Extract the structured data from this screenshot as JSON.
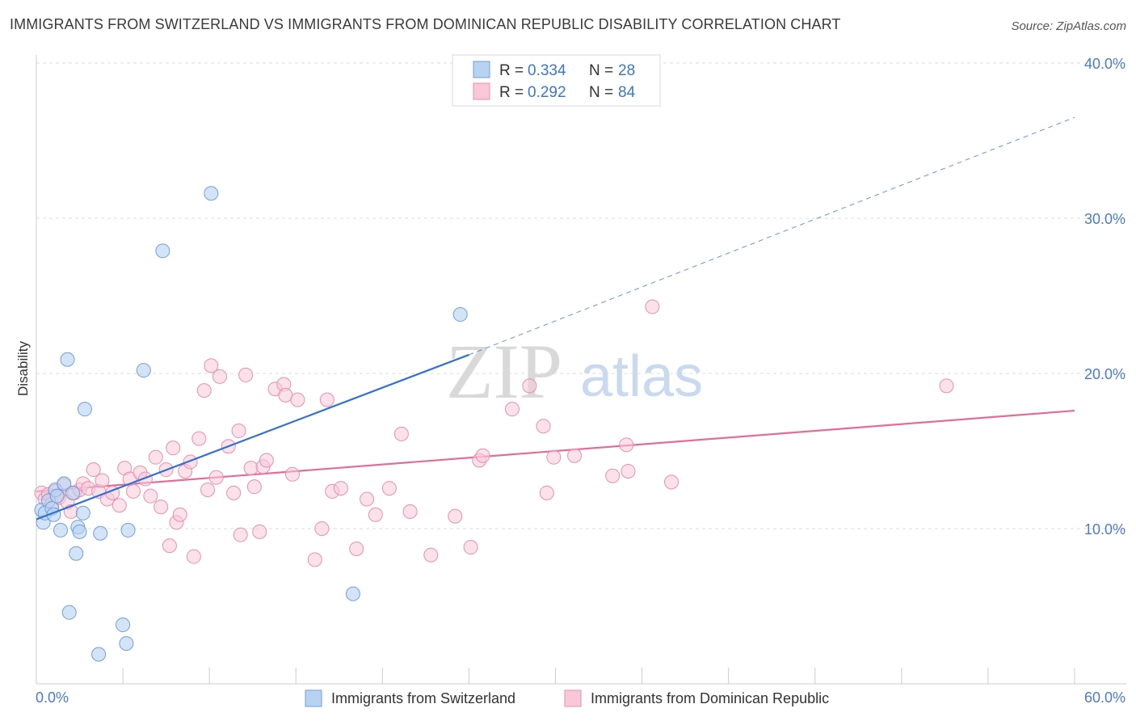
{
  "title": "IMMIGRANTS FROM SWITZERLAND VS IMMIGRANTS FROM DOMINICAN REPUBLIC DISABILITY CORRELATION CHART",
  "source": "Source: ZipAtlas.com",
  "watermark": {
    "zip": "ZIP",
    "atlas": "atlas"
  },
  "colors": {
    "blue_fill": "#b8d2f2",
    "blue_stroke": "#6f9fdc",
    "blue_line": "#2f72cf",
    "pink_fill": "#f8c8d8",
    "pink_stroke": "#e88fae",
    "pink_line": "#e36d97",
    "tick_text": "#4a7cc9",
    "grid": "#dddddd"
  },
  "legend": {
    "items": [
      {
        "r_label": "R =",
        "r_value": "0.334",
        "n_label": "N =",
        "n_value": "28",
        "color": "blue"
      },
      {
        "r_label": "R =",
        "r_value": "0.292",
        "n_label": "N =",
        "n_value": "84",
        "color": "pink"
      }
    ]
  },
  "bottom_legend": [
    {
      "label": "Immigrants from Switzerland",
      "color": "blue"
    },
    {
      "label": "Immigrants from Dominican Republic",
      "color": "pink"
    }
  ],
  "chart_data": {
    "type": "scatter",
    "title": "IMMIGRANTS FROM SWITZERLAND VS IMMIGRANTS FROM DOMINICAN REPUBLIC DISABILITY CORRELATION CHART",
    "xlabel": "",
    "ylabel": "Disability",
    "xlim": [
      0,
      60
    ],
    "ylim": [
      0,
      40
    ],
    "x_tick_labels": [
      "0.0%",
      "60.0%"
    ],
    "y_ticks": [
      10,
      20,
      30,
      40
    ],
    "y_tick_labels": [
      "10.0%",
      "20.0%",
      "30.0%",
      "40.0%"
    ],
    "grid": true,
    "legend_position": "top-center",
    "series": [
      {
        "name": "Immigrants from Switzerland",
        "color": "blue",
        "R": 0.334,
        "N": 28,
        "trend": {
          "x": [
            0,
            25
          ],
          "y": [
            10.6,
            21.2
          ],
          "dashed_to": [
            60,
            36.5
          ]
        },
        "points": [
          [
            0.3,
            11.2
          ],
          [
            0.4,
            10.4
          ],
          [
            0.5,
            11.0
          ],
          [
            0.7,
            11.8
          ],
          [
            0.9,
            11.3
          ],
          [
            1.0,
            10.9
          ],
          [
            1.1,
            12.5
          ],
          [
            1.2,
            12.1
          ],
          [
            1.4,
            9.9
          ],
          [
            1.6,
            12.9
          ],
          [
            1.8,
            20.9
          ],
          [
            1.9,
            4.6
          ],
          [
            2.1,
            12.3
          ],
          [
            2.3,
            8.4
          ],
          [
            2.4,
            10.1
          ],
          [
            2.5,
            9.8
          ],
          [
            2.7,
            11.0
          ],
          [
            2.8,
            17.7
          ],
          [
            3.6,
            1.9
          ],
          [
            3.7,
            9.7
          ],
          [
            5.0,
            3.8
          ],
          [
            5.2,
            2.6
          ],
          [
            5.3,
            9.9
          ],
          [
            6.2,
            20.2
          ],
          [
            7.3,
            27.9
          ],
          [
            10.1,
            31.6
          ],
          [
            18.3,
            5.8
          ],
          [
            24.5,
            23.8
          ]
        ]
      },
      {
        "name": "Immigrants from Dominican Republic",
        "color": "pink",
        "R": 0.292,
        "N": 84,
        "trend": {
          "x": [
            0,
            60
          ],
          "y": [
            12.4,
            17.6
          ]
        },
        "points": [
          [
            0.3,
            12.3
          ],
          [
            0.5,
            11.9
          ],
          [
            0.7,
            12.2
          ],
          [
            0.9,
            11.6
          ],
          [
            1.1,
            12.4
          ],
          [
            1.3,
            12.0
          ],
          [
            1.6,
            12.8
          ],
          [
            1.8,
            11.7
          ],
          [
            2.0,
            11.1
          ],
          [
            2.2,
            12.3
          ],
          [
            2.5,
            12.5
          ],
          [
            2.7,
            12.9
          ],
          [
            3.0,
            12.6
          ],
          [
            3.3,
            13.8
          ],
          [
            3.6,
            12.4
          ],
          [
            3.8,
            13.1
          ],
          [
            4.1,
            11.9
          ],
          [
            4.4,
            12.3
          ],
          [
            4.8,
            11.5
          ],
          [
            5.1,
            13.9
          ],
          [
            5.4,
            13.2
          ],
          [
            5.6,
            12.4
          ],
          [
            6.0,
            13.6
          ],
          [
            6.3,
            13.2
          ],
          [
            6.6,
            12.1
          ],
          [
            6.9,
            14.6
          ],
          [
            7.2,
            11.4
          ],
          [
            7.5,
            13.8
          ],
          [
            7.7,
            8.9
          ],
          [
            7.9,
            15.2
          ],
          [
            8.1,
            10.4
          ],
          [
            8.3,
            10.9
          ],
          [
            8.6,
            13.7
          ],
          [
            8.9,
            14.3
          ],
          [
            9.1,
            8.2
          ],
          [
            9.4,
            15.8
          ],
          [
            9.7,
            18.9
          ],
          [
            9.9,
            12.5
          ],
          [
            10.1,
            20.5
          ],
          [
            10.4,
            13.3
          ],
          [
            10.6,
            19.8
          ],
          [
            11.1,
            15.3
          ],
          [
            11.4,
            12.3
          ],
          [
            11.7,
            16.3
          ],
          [
            11.8,
            9.6
          ],
          [
            12.1,
            19.9
          ],
          [
            12.4,
            13.9
          ],
          [
            12.6,
            12.7
          ],
          [
            12.9,
            9.8
          ],
          [
            13.1,
            14.0
          ],
          [
            13.3,
            14.4
          ],
          [
            13.8,
            19.0
          ],
          [
            14.3,
            19.3
          ],
          [
            14.4,
            18.6
          ],
          [
            14.8,
            13.5
          ],
          [
            15.1,
            18.3
          ],
          [
            16.1,
            8.0
          ],
          [
            16.5,
            10.0
          ],
          [
            16.8,
            18.3
          ],
          [
            17.1,
            12.4
          ],
          [
            17.6,
            12.6
          ],
          [
            18.5,
            8.7
          ],
          [
            19.1,
            11.9
          ],
          [
            19.6,
            10.9
          ],
          [
            20.4,
            12.6
          ],
          [
            21.1,
            16.1
          ],
          [
            21.6,
            11.1
          ],
          [
            22.8,
            8.3
          ],
          [
            24.2,
            10.8
          ],
          [
            25.1,
            8.8
          ],
          [
            25.6,
            14.4
          ],
          [
            25.8,
            14.7
          ],
          [
            27.5,
            17.7
          ],
          [
            28.5,
            19.2
          ],
          [
            29.3,
            16.6
          ],
          [
            29.5,
            12.3
          ],
          [
            29.9,
            14.6
          ],
          [
            31.1,
            14.7
          ],
          [
            33.3,
            13.4
          ],
          [
            34.1,
            15.4
          ],
          [
            34.2,
            13.7
          ],
          [
            35.6,
            24.3
          ],
          [
            36.7,
            13.0
          ],
          [
            52.6,
            19.2
          ]
        ]
      }
    ]
  }
}
